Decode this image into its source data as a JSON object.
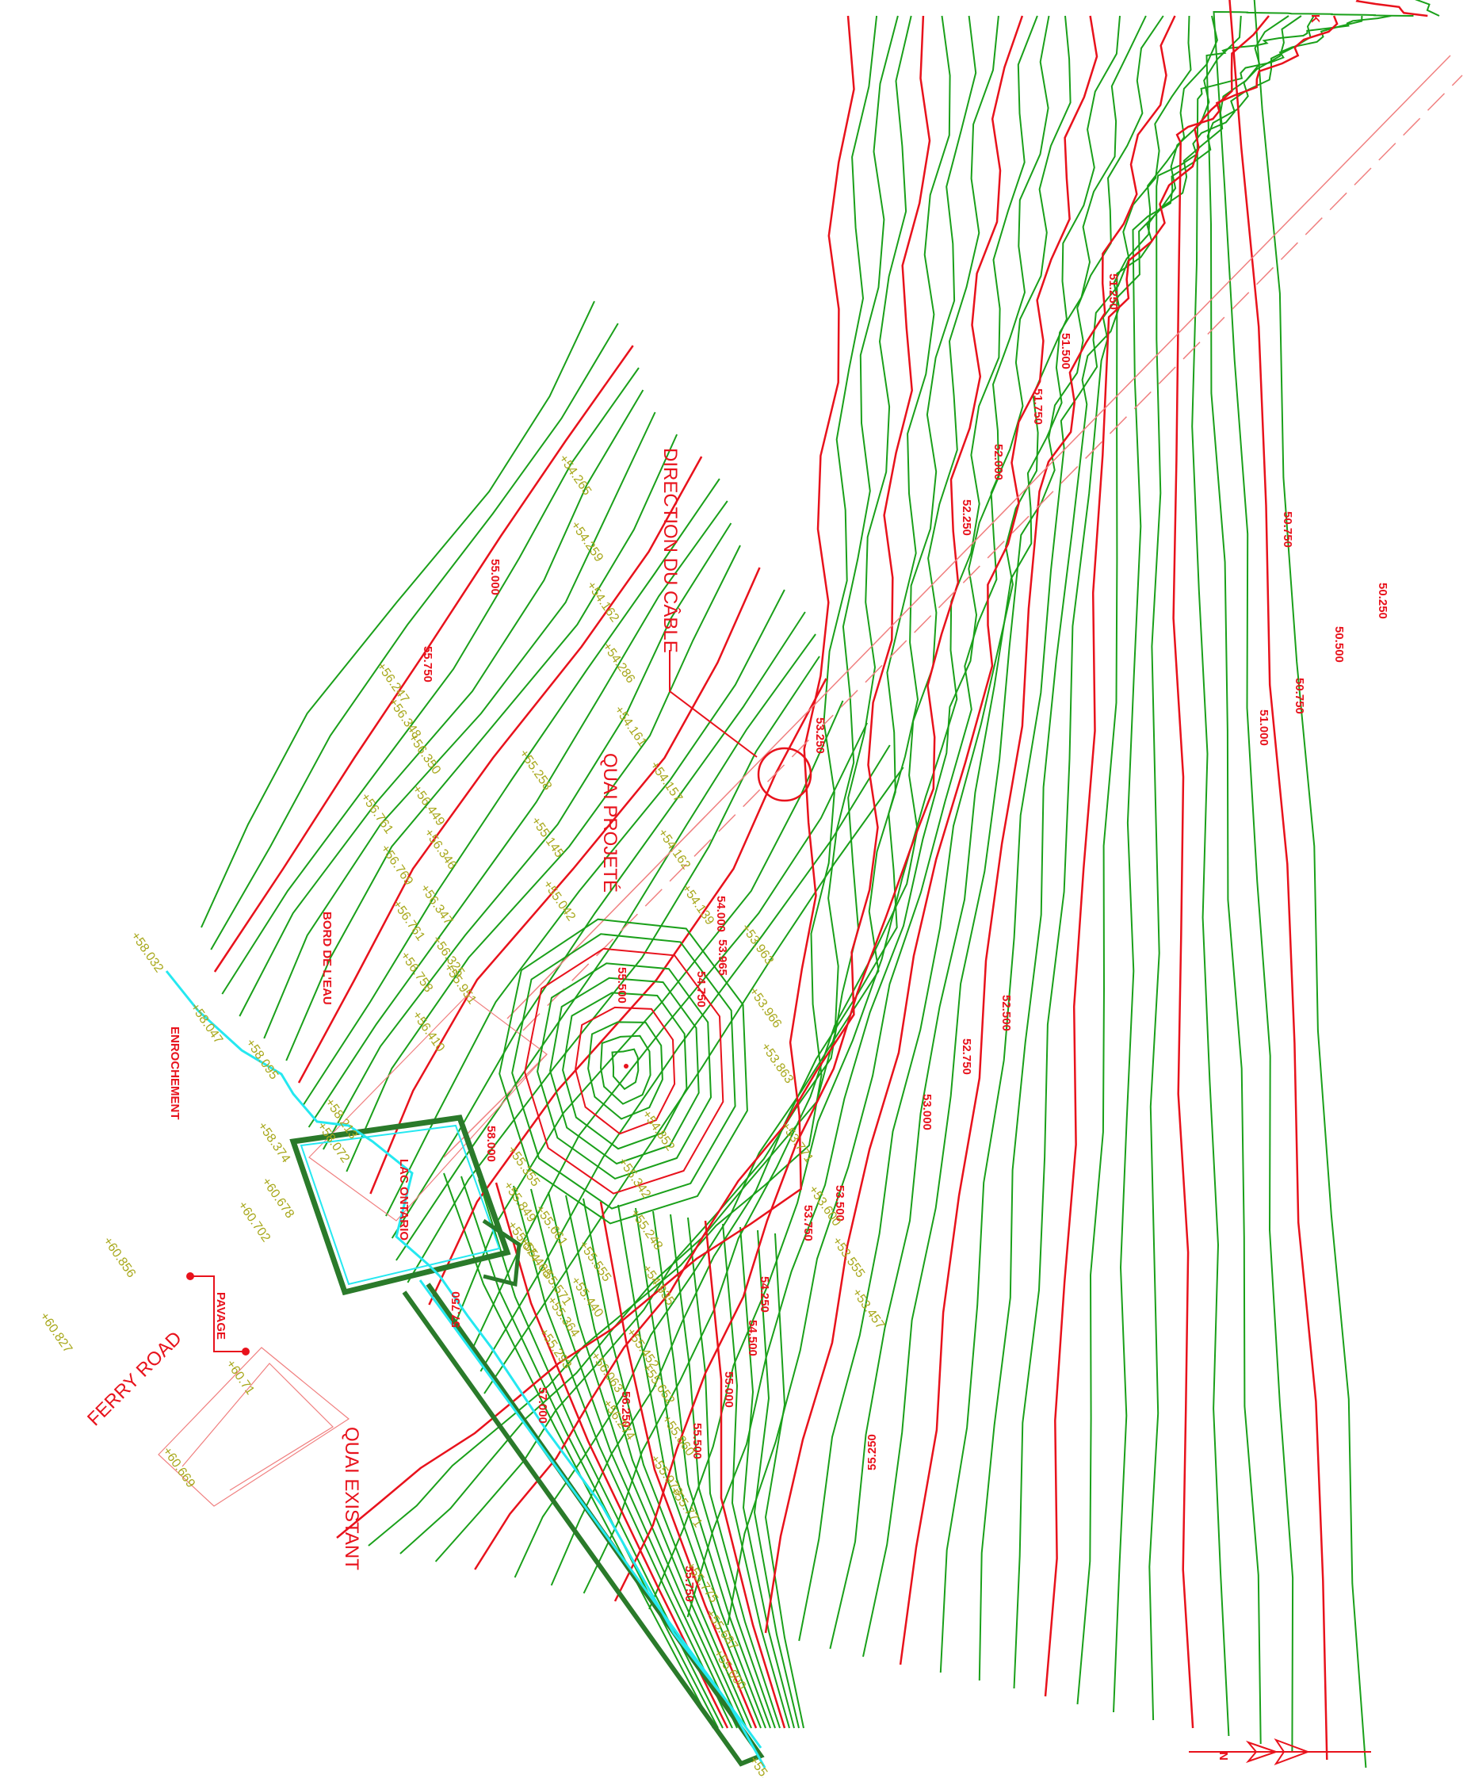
{
  "labels": {
    "direction_cable": "DIRECTION DU CÂBLE",
    "quai_projete": "QUAI PROJETÉ",
    "quai_existant": "QUAI EXISTANT",
    "bord_de_leau": "BORD DE L'EAU",
    "enrochement": "ENROCHEMENT",
    "pavage": "PAVAGE",
    "ferry_road": "FERRY ROAD",
    "lac_ontario": "LAC ONTARIO",
    "tag_k": "K"
  },
  "contour_labels": [
    "55.000",
    "55.750",
    "53.250",
    "52.250",
    "52.000",
    "51.750",
    "51.500",
    "51.250",
    "50.750",
    "51.000",
    "50.750",
    "50.500",
    "50.250",
    "54.000",
    "53.965",
    "54.750",
    "55.500",
    "53.750",
    "53.500",
    "54.250",
    "54.500",
    "55.000",
    "53.000",
    "52.750",
    "52.500",
    "55.250",
    "57.750",
    "57.000",
    "56.250",
    "55.500",
    "55.750",
    "58.000"
  ],
  "spot_elevations": [
    "54.265",
    "54.259",
    "54.162",
    "54.286",
    "54.161",
    "54.157",
    "54.162",
    "54.139",
    "55.258",
    "55.145",
    "55.042",
    "56.247",
    "56.348",
    "56.350",
    "56.449",
    "56.346",
    "56.347",
    "56.325",
    "55.951",
    "56.761",
    "56.769",
    "56.761",
    "56.758",
    "56.410",
    "53.963",
    "53.966",
    "53.863",
    "53.771",
    "53.600",
    "53.555",
    "53.457",
    "54.852",
    "55.342",
    "55.248",
    "54.935",
    "55.355",
    "55.849",
    "55.661",
    "55.674",
    "55.468",
    "55.555",
    "55.440",
    "55.571",
    "55.364",
    "55.293",
    "56.063",
    "56.274",
    "55.652",
    "55.452",
    "55.860",
    "55.973",
    "55.771",
    "55.775",
    "55.687",
    "55.600",
    "55.464",
    "58.032",
    "58.047",
    "58.095",
    "58.374",
    "58.213",
    "58.072",
    "60.678",
    "60.702",
    "60.856",
    "60.827",
    "60.669",
    "60.71"
  ],
  "colors": {
    "contour": "#1aa01a",
    "index_contour": "#e8121c",
    "spot": "#a8a81c",
    "water_edge": "#25e8f0",
    "cable": "#f08080",
    "wharf": "#2a7a2a"
  },
  "icons": {
    "north_arrow": "north-arrow-icon"
  }
}
